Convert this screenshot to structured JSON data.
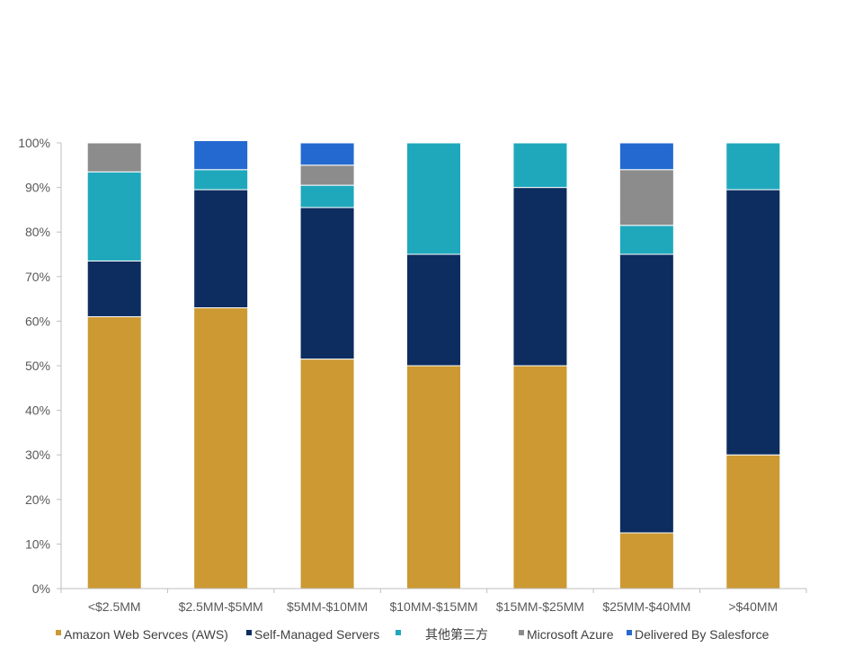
{
  "chart_data": {
    "type": "bar",
    "stacked": true,
    "categories": [
      "<$2.5MM",
      "$2.5MM-$5MM",
      "$5MM-$10MM",
      "$10MM-$15MM",
      "$15MM-$25MM",
      "$25MM-$40MM",
      ">$40MM"
    ],
    "series": [
      {
        "name": "Amazon Web Servces (AWS)",
        "color": "#CC9933",
        "values": [
          61,
          63,
          51.5,
          50,
          50,
          12.5,
          30
        ]
      },
      {
        "name": "Self-Managed Servers",
        "color": "#0D2D60",
        "values": [
          12.5,
          26.5,
          34,
          25,
          40,
          62.5,
          59.5
        ]
      },
      {
        "name": "其他第三方",
        "color": "#1FA8BC",
        "values": [
          20,
          4.5,
          5,
          25,
          10,
          6.5,
          10.5
        ]
      },
      {
        "name": "Microsoft Azure",
        "color": "#8C8C8C",
        "values": [
          6.5,
          0,
          4.5,
          0,
          0,
          12.5,
          0
        ]
      },
      {
        "name": "Delivered By Salesforce",
        "color": "#2469D0",
        "values": [
          0,
          6.5,
          5,
          0,
          0,
          6,
          0
        ]
      }
    ],
    "yticks": [
      "0%",
      "10%",
      "20%",
      "30%",
      "40%",
      "50%",
      "60%",
      "70%",
      "80%",
      "90%",
      "100%"
    ],
    "ylim": [
      0,
      100
    ],
    "legend_position": "bottom",
    "grid": false
  }
}
